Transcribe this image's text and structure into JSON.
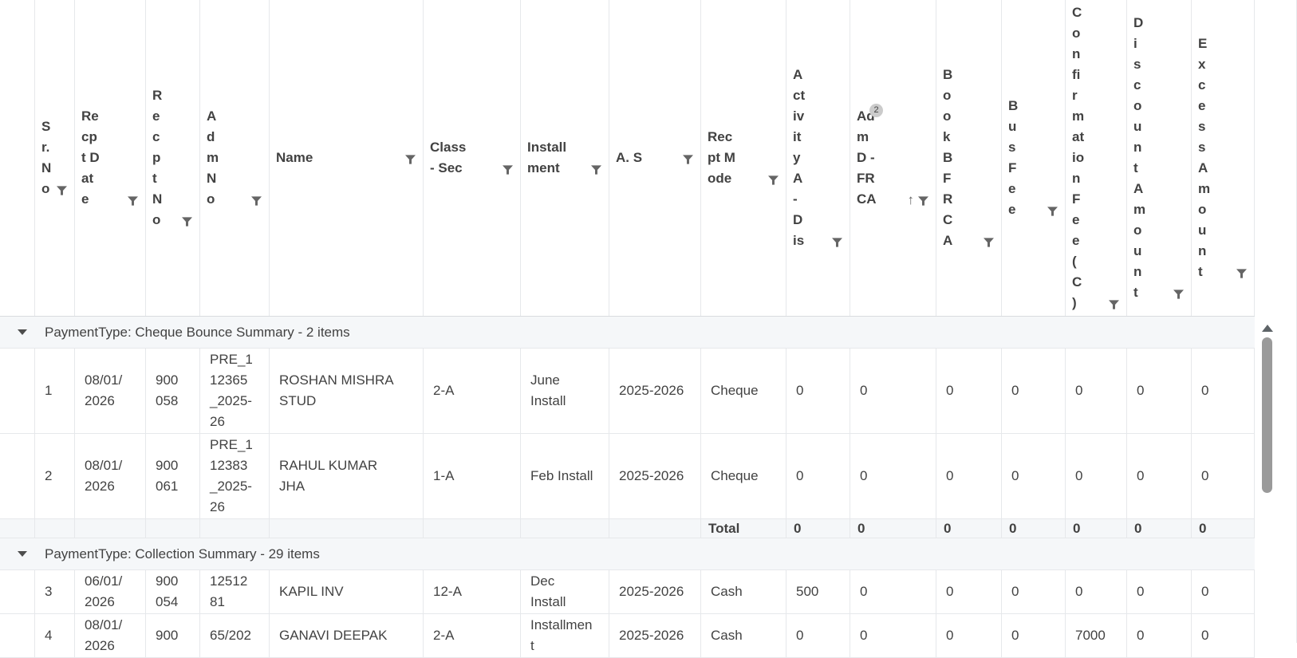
{
  "grid": {
    "columns": [
      {
        "title": "Sr. No",
        "has_filter": true
      },
      {
        "title": "Recpt Date",
        "has_filter": true
      },
      {
        "title": "Recpt No",
        "has_filter": true
      },
      {
        "title": "Adm No",
        "has_filter": true
      },
      {
        "title": "Name",
        "has_filter": true
      },
      {
        "title": "Class - Sec",
        "has_filter": true
      },
      {
        "title": "Installment",
        "has_filter": true
      },
      {
        "title": "A. S",
        "has_filter": true
      },
      {
        "title": "Recpt Mode",
        "has_filter": true
      },
      {
        "title": "Activity A - Dis",
        "has_filter": true
      },
      {
        "title": "Adm D - FR CA",
        "has_filter": true,
        "sort": "asc",
        "sort_order_badge": "2"
      },
      {
        "title": "Book B FR CA",
        "has_filter": true
      },
      {
        "title": "Bus Fee",
        "has_filter": true
      },
      {
        "title": "Confirmation Fee (C)",
        "has_filter": true
      },
      {
        "title": "Discount Amount",
        "has_filter": true
      },
      {
        "title": "Excess Amount",
        "has_filter": true
      }
    ],
    "groups": [
      {
        "label": "PaymentType: Cheque Bounce Summary - 2 items",
        "rows": [
          {
            "cells": [
              "1",
              "08/01/\n2026",
              "900\n058",
              "PRE_1\n12365\n_2025-\n26",
              "ROSHAN MISHRA\nSTUD",
              "2-A",
              "June\nInstall",
              "2025-2026",
              "Cheque",
              "0",
              "0",
              "0",
              "0",
              "0",
              "0",
              "0"
            ]
          },
          {
            "cells": [
              "2",
              "08/01/\n2026",
              "900\n061",
              "PRE_1\n12383\n_2025-\n26",
              "RAHUL KUMAR\nJHA",
              "1-A",
              "Feb Install",
              "2025-2026",
              "Cheque",
              "0",
              "0",
              "0",
              "0",
              "0",
              "0",
              "0"
            ]
          }
        ],
        "total": {
          "label": "Total",
          "values": [
            "0",
            "0",
            "0",
            "0",
            "0",
            "0",
            "0"
          ]
        }
      },
      {
        "label": "PaymentType: Collection Summary - 29 items",
        "rows": [
          {
            "cells": [
              "3",
              "06/01/\n2026",
              "900\n054",
              "12512\n81",
              "KAPIL INV",
              "12-A",
              "Dec\nInstall",
              "2025-2026",
              "Cash",
              "500",
              "0",
              "0",
              "0",
              "0",
              "0",
              "0"
            ]
          },
          {
            "cells": [
              "4",
              "08/01/\n2026",
              "900",
              "65/202",
              "GANAVI DEEPAK",
              "2-A",
              "Installmen\nt",
              "2025-2026",
              "Cash",
              "0",
              "0",
              "0",
              "0",
              "7000",
              "0",
              "0"
            ]
          }
        ]
      }
    ]
  }
}
